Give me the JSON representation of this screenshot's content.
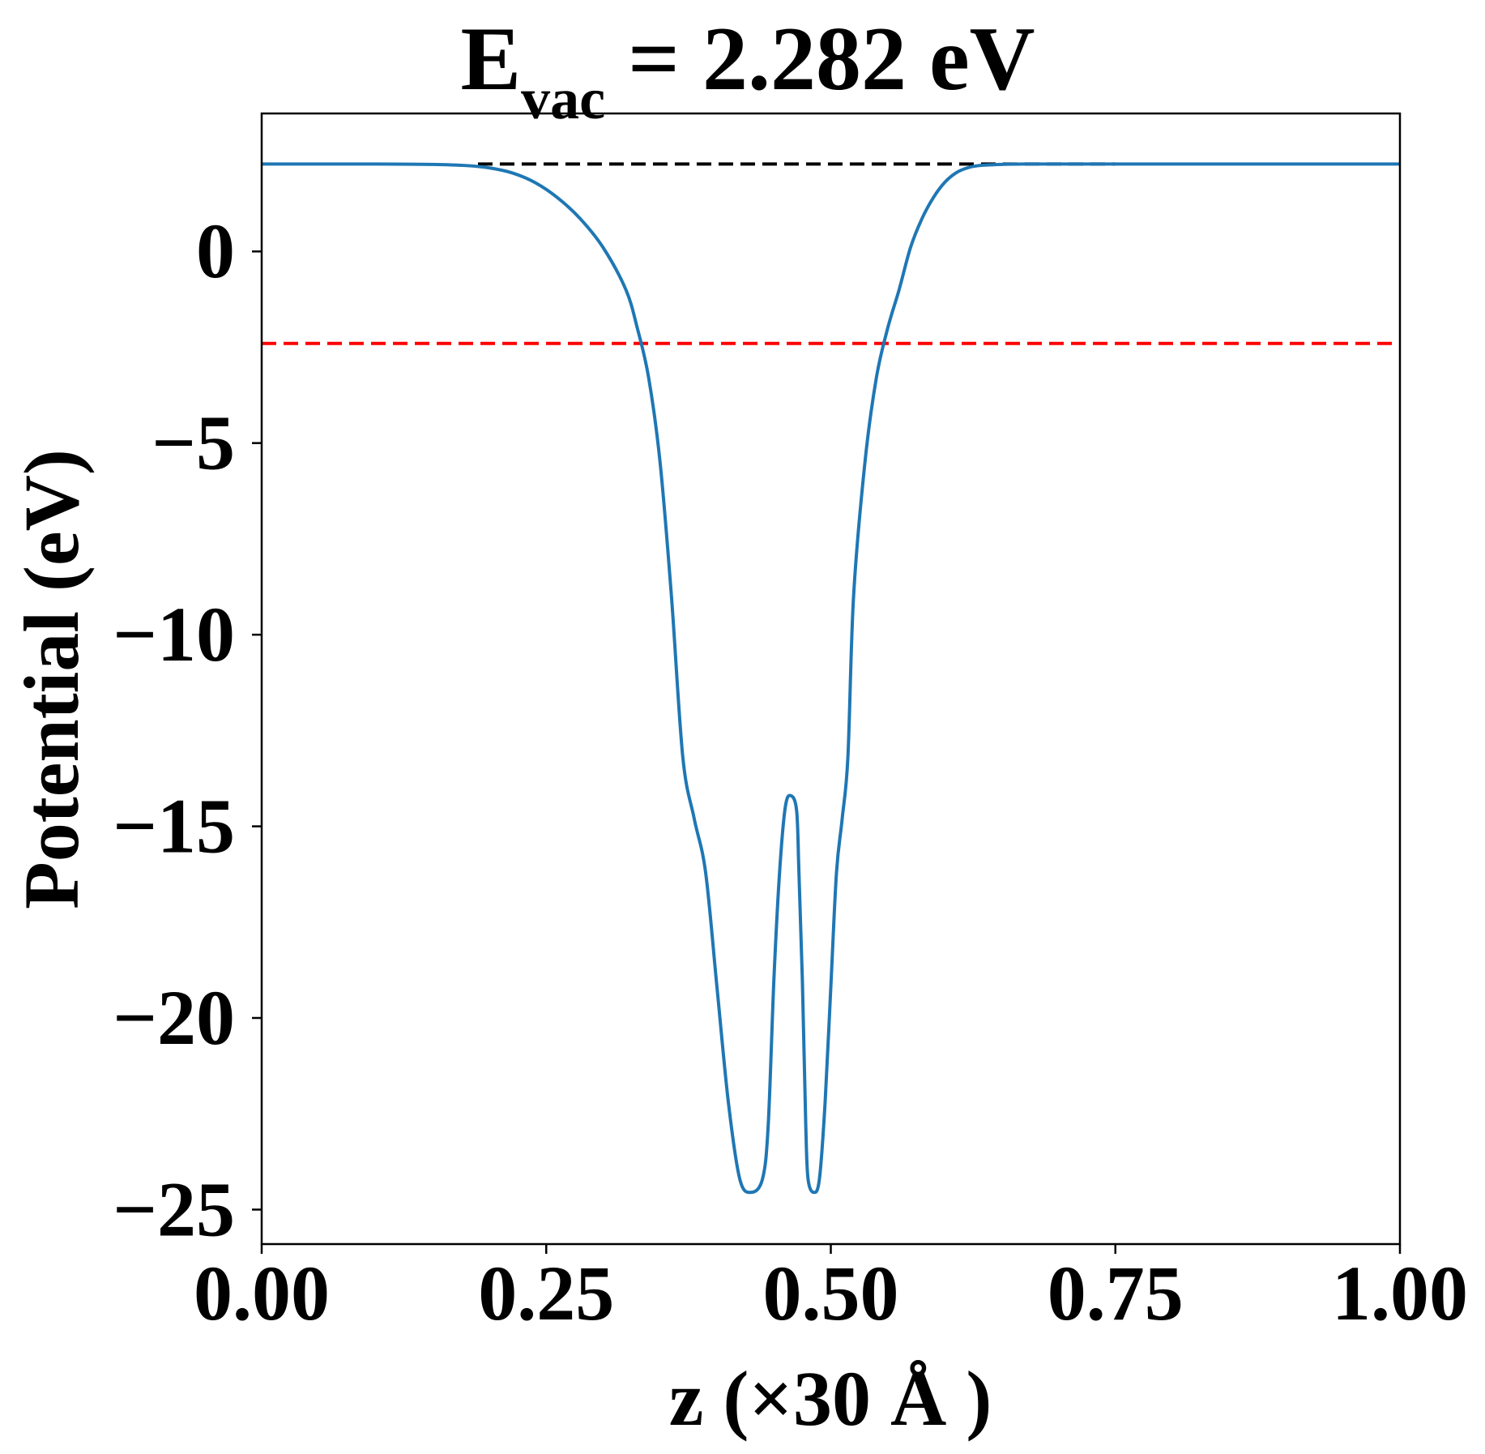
{
  "chart_data": {
    "type": "line",
    "title": {
      "main": "E",
      "subscript": "vac",
      "rest": " = 2.282 eV"
    },
    "xlabel": "z (×30 Å )",
    "ylabel": "Potential (eV)",
    "xlim": [
      0,
      1
    ],
    "ylim": [
      -25.9,
      3.6
    ],
    "xticks": [
      0.0,
      0.25,
      0.5,
      0.75,
      1.0
    ],
    "xtick_labels": [
      "0.00",
      "0.25",
      "0.50",
      "0.75",
      "1.00"
    ],
    "yticks": [
      0,
      -5,
      -10,
      -15,
      -20,
      -25
    ],
    "ytick_labels": [
      "0",
      "−5",
      "−10",
      "−15",
      "−20",
      "−25"
    ],
    "grid": false,
    "series": [
      {
        "color": "#1f77b4",
        "x": [
          0.0,
          0.05,
          0.1,
          0.15,
          0.18,
          0.2,
          0.22,
          0.24,
          0.26,
          0.28,
          0.3,
          0.32,
          0.33,
          0.34,
          0.35,
          0.36,
          0.37,
          0.38,
          0.39,
          0.4,
          0.41,
          0.42,
          0.43,
          0.44,
          0.445,
          0.45,
          0.455,
          0.46,
          0.465,
          0.47,
          0.472,
          0.475,
          0.478,
          0.48,
          0.485,
          0.49,
          0.495,
          0.5,
          0.505,
          0.51,
          0.515,
          0.52,
          0.53,
          0.54,
          0.55,
          0.56,
          0.57,
          0.58,
          0.59,
          0.6,
          0.61,
          0.62,
          0.63,
          0.65,
          0.67,
          0.7,
          0.72,
          0.75,
          0.78,
          0.8,
          0.85,
          0.9,
          0.95,
          1.0
        ],
        "y": [
          2.28,
          2.28,
          2.28,
          2.27,
          2.24,
          2.18,
          2.05,
          1.8,
          1.4,
          0.85,
          0.1,
          -1.0,
          -2.0,
          -3.3,
          -5.5,
          -9.0,
          -13.2,
          -14.8,
          -16.2,
          -19.2,
          -22.2,
          -24.2,
          -24.55,
          -24.2,
          -22.8,
          -19.0,
          -16.2,
          -14.5,
          -14.2,
          -14.6,
          -16.2,
          -19.0,
          -22.8,
          -24.2,
          -24.55,
          -24.2,
          -22.2,
          -19.2,
          -16.2,
          -14.8,
          -13.2,
          -9.0,
          -5.5,
          -3.3,
          -2.0,
          -1.0,
          0.1,
          0.85,
          1.4,
          1.8,
          2.05,
          2.18,
          2.24,
          2.27,
          2.28,
          2.28,
          2.28,
          2.28,
          2.28,
          2.28,
          2.28,
          2.28,
          2.28,
          2.28
        ]
      }
    ],
    "reference_lines": [
      {
        "y": 2.282,
        "color": "#000000",
        "style": "dashed",
        "x_range": [
          0.19,
          0.75
        ]
      },
      {
        "y": -2.4,
        "color": "#ff0000",
        "style": "dashed",
        "x_range": [
          0.0,
          1.0
        ]
      }
    ]
  }
}
